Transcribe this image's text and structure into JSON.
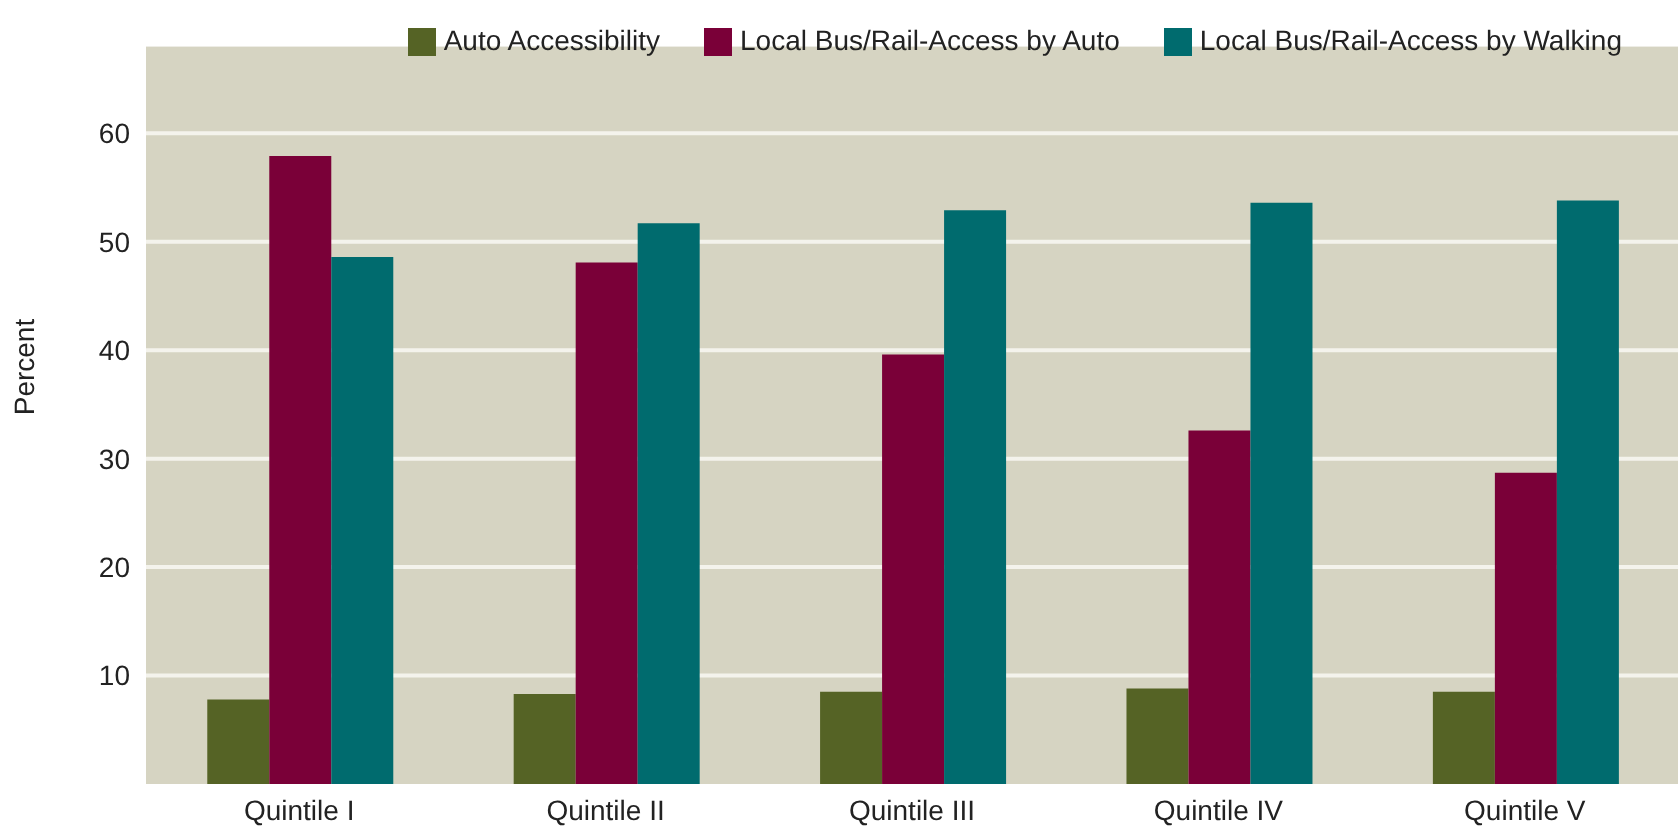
{
  "chart_data": {
    "type": "bar",
    "ylabel": "Percent",
    "categories": [
      "Quintile I",
      "Quintile II",
      "Quintile III",
      "Quintile IV",
      "Quintile V"
    ],
    "series": [
      {
        "name": "Auto Accessibility",
        "color": "#556325",
        "values": [
          7.8,
          8.3,
          8.5,
          8.8,
          8.5
        ]
      },
      {
        "name": "Local Bus/Rail-Access by Auto",
        "color": "#7a0038",
        "values": [
          57.9,
          48.1,
          39.6,
          32.6,
          28.7
        ]
      },
      {
        "name": "Local Bus/Rail-Access by Walking",
        "color": "#006b6e",
        "values": [
          48.6,
          51.7,
          52.9,
          53.6,
          53.8
        ]
      }
    ],
    "ylim": [
      0,
      68
    ],
    "yticks": [
      10,
      20,
      30,
      40,
      50,
      60
    ],
    "grid": "y",
    "legend": "top right"
  }
}
